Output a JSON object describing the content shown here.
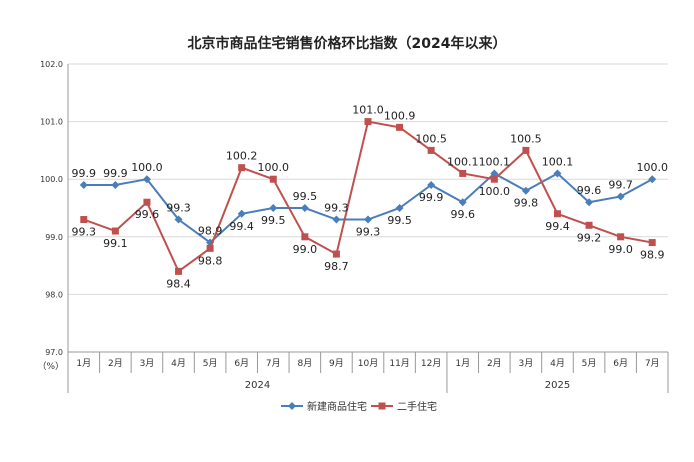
{
  "chart_data": {
    "type": "line",
    "title": "北京市商品住宅销售价格环比指数（2024年以来）",
    "unit_label": "（%）",
    "ylim": [
      97.0,
      102.0
    ],
    "yticks": [
      "97.0",
      "98.0",
      "99.0",
      "100.0",
      "101.0",
      "102.0"
    ],
    "categories": [
      "1月",
      "2月",
      "3月",
      "4月",
      "5月",
      "6月",
      "7月",
      "8月",
      "9月",
      "10月",
      "11月",
      "12月",
      "1月",
      "2月",
      "3月",
      "4月",
      "5月",
      "6月",
      "7月"
    ],
    "years": [
      {
        "label": "2024",
        "span": 12
      },
      {
        "label": "2025",
        "span": 7
      }
    ],
    "series": [
      {
        "name": "新建商品住宅",
        "color": "#4a7ebb",
        "marker": "diamond",
        "values": [
          99.9,
          99.9,
          100.0,
          99.3,
          98.9,
          99.4,
          99.5,
          99.5,
          99.3,
          99.3,
          99.5,
          99.9,
          99.6,
          100.1,
          99.8,
          100.1,
          99.6,
          99.7,
          100.0
        ],
        "labels": [
          "99.9",
          "99.9",
          "100.0",
          "99.3",
          "98.9",
          "99.4",
          "99.5",
          "99.5",
          "99.3",
          "99.3",
          "99.5",
          "99.9",
          "99.6",
          "100.1",
          "99.8",
          "100.1",
          "99.6",
          "99.7",
          "100.0"
        ]
      },
      {
        "name": "二手住宅",
        "color": "#c0504d",
        "marker": "square",
        "values": [
          99.3,
          99.1,
          99.6,
          98.4,
          98.8,
          100.2,
          100.0,
          99.0,
          98.7,
          101.0,
          100.9,
          100.5,
          100.1,
          100.0,
          100.5,
          99.4,
          99.2,
          99.0,
          98.9
        ],
        "labels": [
          "99.3",
          "99.1",
          "99.6",
          "98.4",
          "98.8",
          "100.2",
          "100.0",
          "99.0",
          "98.7",
          "101.0",
          "100.9",
          "100.5",
          "100.1",
          "100.0",
          "100.5",
          "99.4",
          "99.2",
          "99.0",
          "98.9"
        ]
      }
    ],
    "grid": true,
    "legend_position": "bottom"
  }
}
